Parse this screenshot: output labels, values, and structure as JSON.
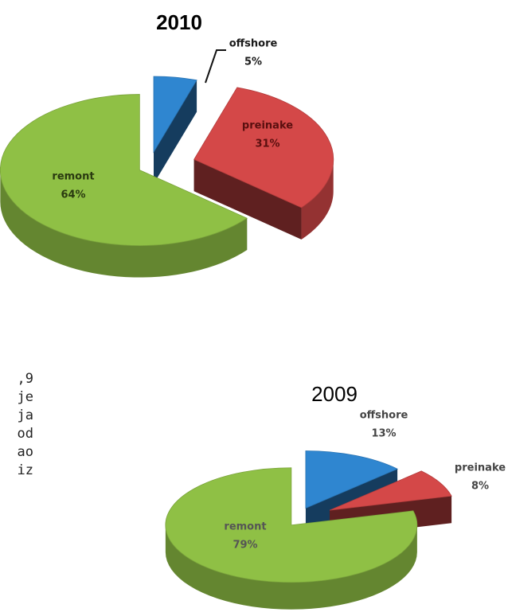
{
  "chart_data": [
    {
      "type": "pie",
      "title": "2010",
      "categories": [
        "offshore",
        "preinake",
        "remont"
      ],
      "values": [
        5,
        31,
        64
      ],
      "value_labels": [
        "5%",
        "31%",
        "64%"
      ],
      "colors": [
        "#2f86d0",
        "#d44848",
        "#8fc045"
      ]
    },
    {
      "type": "pie",
      "title": "2009",
      "categories": [
        "offshore",
        "preinake",
        "remont"
      ],
      "values": [
        13,
        8,
        79
      ],
      "value_labels": [
        "13%",
        "8%",
        "79%"
      ],
      "colors": [
        "#2f86d0",
        "#d44848",
        "#8fc045"
      ]
    }
  ],
  "text_fragments": [
    ",9",
    "je",
    "ja",
    "od",
    "ao",
    "iz"
  ]
}
